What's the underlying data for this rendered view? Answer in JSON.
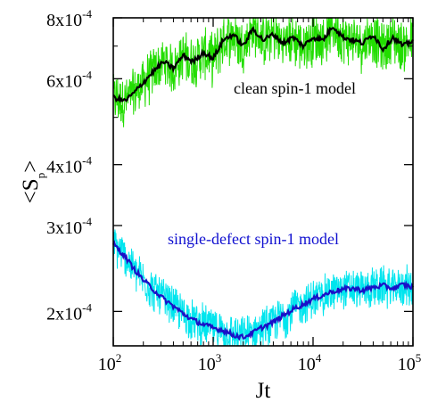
{
  "chart_data": {
    "type": "line",
    "xlabel": "Jt",
    "ylabel_main": "<S",
    "ylabel_sub": "p",
    "ylabel_close": ">",
    "x_scale": "log",
    "y_scale": "log",
    "xlim": [
      100,
      100000
    ],
    "ylim": [
      0.00017,
      0.0008
    ],
    "x_ticks": [
      {
        "value": 100,
        "base": "10",
        "exp": "2"
      },
      {
        "value": 1000,
        "base": "10",
        "exp": "3"
      },
      {
        "value": 10000,
        "base": "10",
        "exp": "4"
      },
      {
        "value": 100000,
        "base": "10",
        "exp": "5"
      }
    ],
    "y_ticks": [
      {
        "value": 0.0002,
        "mant": "2x10",
        "exp": "-4"
      },
      {
        "value": 0.0003,
        "mant": "3x10",
        "exp": "-4"
      },
      {
        "value": 0.0004,
        "mant": "4x10",
        "exp": "-4"
      },
      {
        "value": 0.0006,
        "mant": "6x10",
        "exp": "-4"
      },
      {
        "value": 0.0008,
        "mant": "8x10",
        "exp": "-4"
      }
    ],
    "annotations": [
      {
        "text": "clean spin-1 model",
        "color": "#000000"
      },
      {
        "text": "single-defect spin-1 model",
        "color": "#1010d0"
      }
    ],
    "colors": {
      "clean_noisy": "#22dd00",
      "clean_avg": "#000000",
      "defect_noisy": "#00e5ee",
      "defect_avg": "#1a10c8"
    },
    "series": [
      {
        "key": "clean_avg",
        "x": [
          100,
          130,
          160,
          200,
          250,
          320,
          400,
          500,
          630,
          800,
          1000,
          1260,
          1580,
          2000,
          2500,
          3160,
          4000,
          5000,
          6300,
          8000,
          10000,
          12600,
          15800,
          20000,
          25000,
          31600,
          40000,
          50000,
          63000,
          80000,
          100000
        ],
        "y": [
          0.00055,
          0.00054,
          0.00056,
          0.00059,
          0.00062,
          0.00065,
          0.00063,
          0.00067,
          0.00065,
          0.00068,
          0.00066,
          0.00072,
          0.00074,
          0.0007,
          0.00076,
          0.00072,
          0.00074,
          0.00071,
          0.00073,
          0.0007,
          0.00073,
          0.00072,
          0.00077,
          0.00073,
          0.00072,
          0.00071,
          0.00074,
          0.00069,
          0.00073,
          0.0007,
          0.00072
        ],
        "band": 0.1
      },
      {
        "key": "defect_avg",
        "x": [
          100,
          130,
          160,
          200,
          250,
          320,
          400,
          500,
          630,
          800,
          1000,
          1260,
          1580,
          2000,
          2500,
          3160,
          4000,
          5000,
          6300,
          8000,
          10000,
          12600,
          15800,
          20000,
          25000,
          31600,
          40000,
          50000,
          63000,
          80000,
          100000
        ],
        "y": [
          0.000275,
          0.00026,
          0.000245,
          0.000232,
          0.000222,
          0.000212,
          0.000205,
          0.000198,
          0.000192,
          0.000188,
          0.000185,
          0.000183,
          0.000179,
          0.000177,
          0.000181,
          0.000186,
          0.00019,
          0.000196,
          0.000202,
          0.000207,
          0.000212,
          0.000216,
          0.00022,
          0.000222,
          0.000223,
          0.000221,
          0.000224,
          0.000226,
          0.000223,
          0.000227,
          0.000224
        ],
        "band": 0.08
      }
    ]
  }
}
